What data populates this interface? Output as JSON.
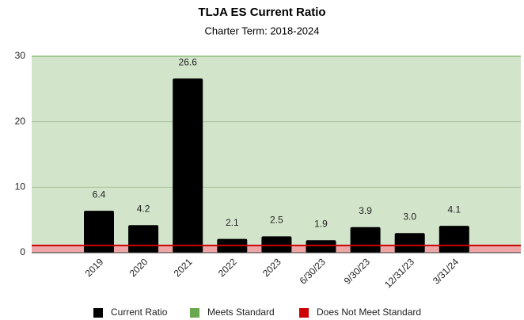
{
  "chart_data": {
    "type": "bar",
    "title": "TLJA ES Current Ratio",
    "subtitle": "Charter Term:  2018-2024",
    "categories": [
      "2019",
      "2020",
      "2021",
      "2022",
      "2023",
      "6/30/23",
      "9/30/23",
      "12/31/23",
      "3/31/24"
    ],
    "series": [
      {
        "name": "Current Ratio",
        "color": "#000000",
        "values": [
          6.4,
          4.2,
          26.6,
          2.1,
          2.5,
          1.9,
          3.9,
          3,
          4.1
        ],
        "value_labels": [
          "6.4",
          "4.2",
          "26.6",
          "2.1",
          "2.5",
          "1.9",
          "3.9",
          "3.0",
          "4.1"
        ]
      }
    ],
    "bands": [
      {
        "name": "Meets Standard",
        "color": "#6aa84f",
        "from": 1.1,
        "to": 30
      },
      {
        "name": "Does Not Meet Standard",
        "color": "#cc0000",
        "from": 0,
        "to": 1.1
      }
    ],
    "ylim": [
      0,
      30
    ],
    "yticks": [
      0,
      10,
      20,
      30
    ],
    "grid": true,
    "legend": "bottom"
  }
}
